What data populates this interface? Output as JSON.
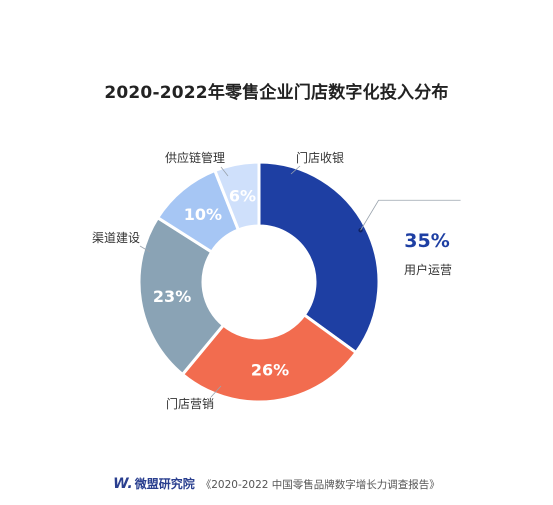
{
  "chart_data": {
    "type": "pie",
    "title": "2020-2022年零售企业门店数字化投入分布",
    "donut": true,
    "categories": [
      "用户运营",
      "门店营销",
      "渠道建设",
      "供应链管理",
      "门店收银"
    ],
    "values": [
      35,
      26,
      23,
      10,
      6
    ],
    "labels": [
      "35%",
      "26%",
      "23%",
      "10%",
      "6%"
    ],
    "colors": [
      "#1e3fa3",
      "#f26c4f",
      "#8aa3b5",
      "#a6c6f4",
      "#cfe0fb"
    ]
  },
  "footer": {
    "logo_mark": "W.",
    "brand": "微盟研究院",
    "source": "《2020-2022 中国零售品牌数字增长力调查报告》"
  }
}
